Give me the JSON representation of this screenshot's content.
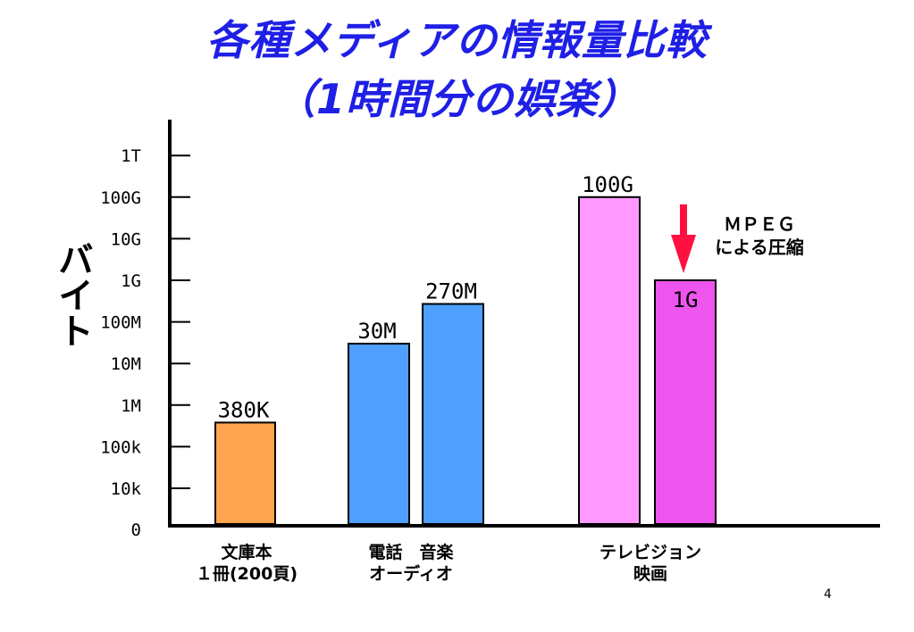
{
  "title": {
    "line1": "各種メディアの情報量比較",
    "line2": "（1時間分の娯楽）",
    "color": "#1f1fe6"
  },
  "page_number": "4",
  "annotation": {
    "line1": "ＭＰＥＧ",
    "line2": "による圧縮",
    "arrow_color": "#ff1040"
  },
  "x_categories": [
    {
      "line1": "文庫本",
      "line2": "１冊(200頁)"
    },
    {
      "line1": "電話　音楽",
      "line2": "オーディオ"
    },
    {
      "line1": "テレビジョン",
      "line2": "映画"
    }
  ],
  "chart_data": {
    "type": "bar",
    "ylabel": "バイト",
    "y_scale": "log",
    "y_ticks": [
      {
        "label": "0",
        "bytes": 0
      },
      {
        "label": "10k",
        "bytes": 10000
      },
      {
        "label": "100k",
        "bytes": 100000
      },
      {
        "label": "1M",
        "bytes": 1000000
      },
      {
        "label": "10M",
        "bytes": 10000000
      },
      {
        "label": "100M",
        "bytes": 100000000
      },
      {
        "label": "1G",
        "bytes": 1000000000
      },
      {
        "label": "10G",
        "bytes": 10000000000
      },
      {
        "label": "100G",
        "bytes": 100000000000
      },
      {
        "label": "1T",
        "bytes": 1000000000000
      }
    ],
    "bars": [
      {
        "label": "380K",
        "bytes": 380000,
        "color": "#ffa54f"
      },
      {
        "label": "30M",
        "bytes": 30000000,
        "color": "#4f9fff"
      },
      {
        "label": "270M",
        "bytes": 270000000,
        "color": "#4f9fff"
      },
      {
        "label": "100G",
        "bytes": 100000000000,
        "color": "#ff99ff"
      },
      {
        "label": "1G",
        "bytes": 1000000000,
        "color": "#ee55ee"
      }
    ]
  }
}
